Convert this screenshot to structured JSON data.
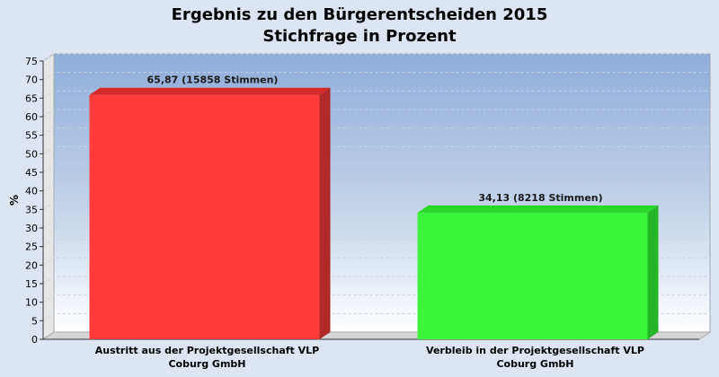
{
  "chart_data": {
    "type": "bar",
    "title": "Ergebnis zu den Bürgerentscheiden 2015",
    "subtitle": "Stichfrage in Prozent",
    "ylabel": "%",
    "xlabel": "",
    "ylim": [
      0,
      75
    ],
    "y_ticks": [
      0,
      5,
      10,
      15,
      20,
      25,
      30,
      35,
      40,
      45,
      50,
      55,
      60,
      65,
      70,
      75
    ],
    "grid": true,
    "categories": [
      [
        "Austritt aus der Projektgesellschaft VLP",
        "Coburg GmbH"
      ],
      [
        "Verbleib in der Projektgesellschaft VLP",
        "Coburg GmbH"
      ]
    ],
    "values": [
      65.87,
      34.13
    ],
    "data_labels": [
      "65,87 (15858 Stimmen)",
      "34,13 (8218 Stimmen)"
    ],
    "colors": [
      "#ff3a3a",
      "#3cf53c"
    ],
    "side_colors": [
      "#b02a2a",
      "#26b526"
    ],
    "top_colors": [
      "#d82a2a",
      "#2ad82a"
    ]
  }
}
